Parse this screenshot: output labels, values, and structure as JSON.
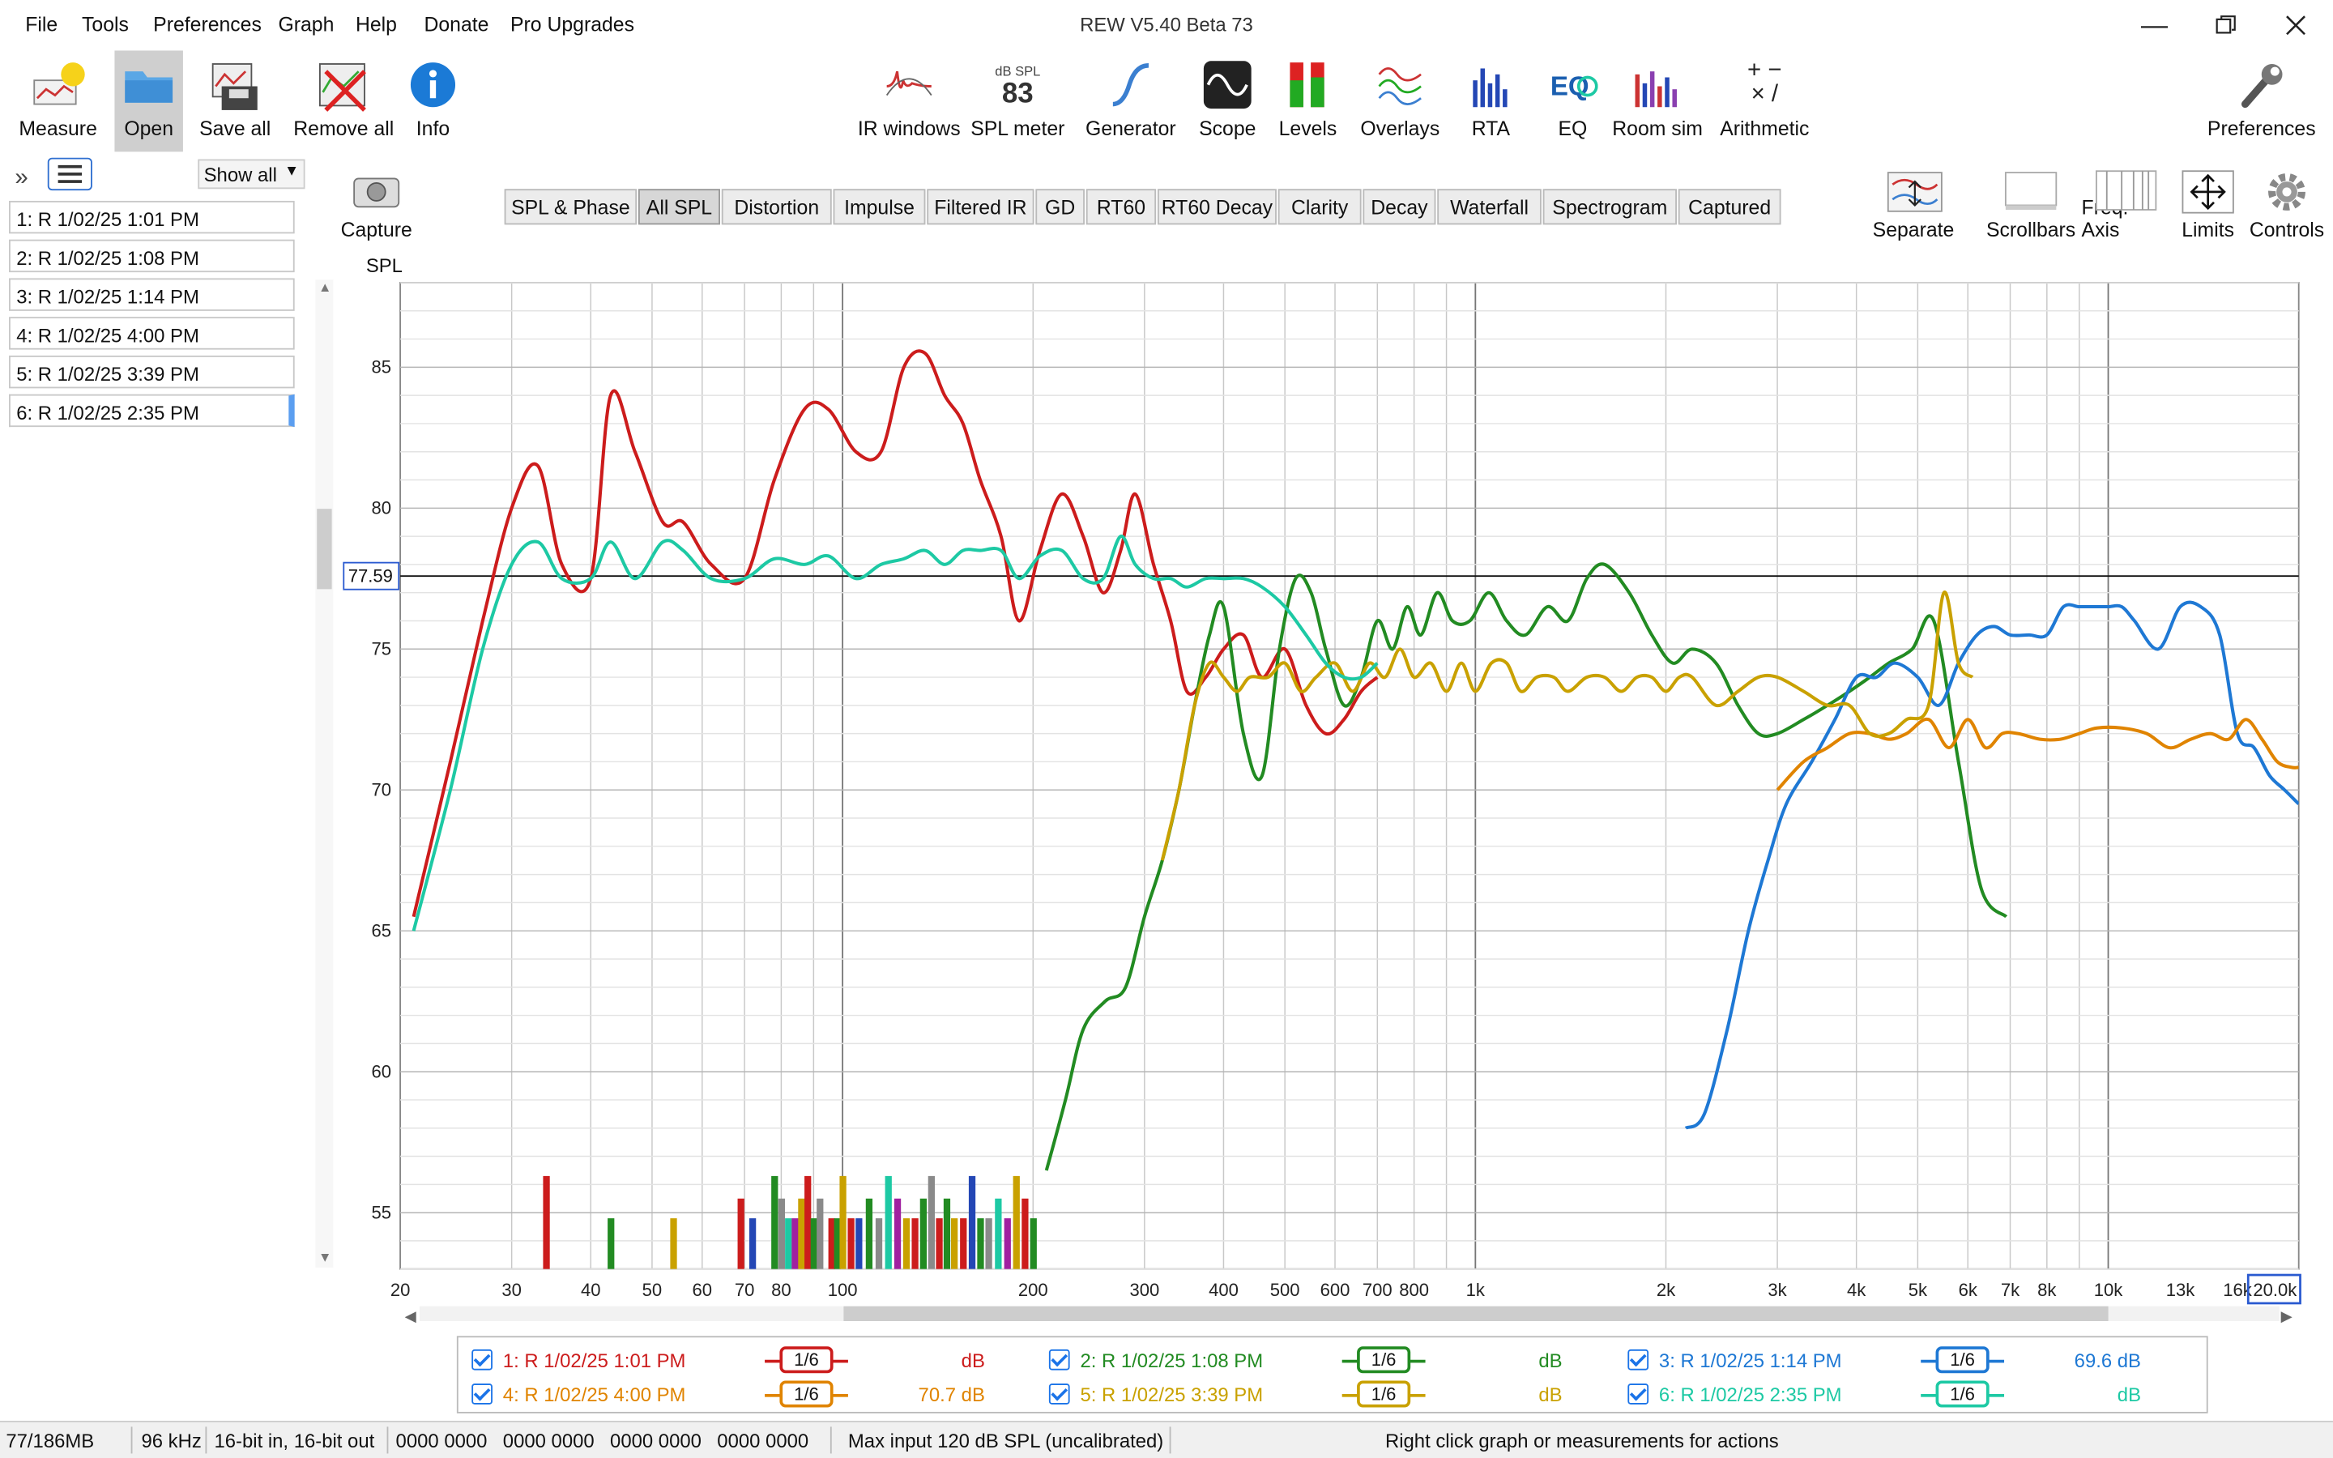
{
  "window": {
    "title": "REW V5.40 Beta 73"
  },
  "menu": [
    "File",
    "Tools",
    "Preferences",
    "Graph",
    "Help",
    "Donate",
    "Pro Upgrades"
  ],
  "toolbar_left": [
    {
      "label": "Measure",
      "icon": "measure-icon"
    },
    {
      "label": "Open",
      "icon": "folder-icon"
    },
    {
      "label": "Save all",
      "icon": "save-icon"
    },
    {
      "label": "Remove all",
      "icon": "remove-icon"
    },
    {
      "label": "Info",
      "icon": "info-icon"
    }
  ],
  "toolbar_center": [
    {
      "label": "IR windows"
    },
    {
      "label": "SPL meter",
      "value": "83",
      "unit": "dB SPL"
    },
    {
      "label": "Generator"
    },
    {
      "label": "Scope"
    },
    {
      "label": "Levels"
    },
    {
      "label": "Overlays"
    },
    {
      "label": "RTA"
    },
    {
      "label": "EQ"
    },
    {
      "label": "Room sim"
    },
    {
      "label": "Arithmetic"
    }
  ],
  "toolbar_right": {
    "label": "Preferences"
  },
  "sidebar": {
    "show_all": "Show all",
    "measurements": [
      "1: R 1/02/25 1:01 PM",
      "2: R 1/02/25 1:08 PM",
      "3: R 1/02/25 1:14 PM",
      "4: R 1/02/25 4:00 PM",
      "5: R 1/02/25 3:39 PM",
      "6: R 1/02/25 2:35 PM"
    ],
    "selected_index": 5
  },
  "capture": {
    "label": "Capture"
  },
  "tabs": [
    "SPL & Phase",
    "All SPL",
    "Distortion",
    "Impulse",
    "Filtered IR",
    "GD",
    "RT60",
    "RT60 Decay",
    "Clarity",
    "Decay",
    "Waterfall",
    "Spectrogram",
    "Captured"
  ],
  "active_tab": "All SPL",
  "graph_tools": [
    "Separate",
    "Scrollbars",
    "Freq. Axis",
    "Limits",
    "Controls"
  ],
  "chart_data": {
    "type": "line",
    "ylabel": "SPL",
    "cursor_level": "77.59",
    "x_scale": "log",
    "xlim": [
      20,
      20000
    ],
    "ylim": [
      53,
      88
    ],
    "x_ticks": [
      "20",
      "30",
      "40",
      "50",
      "60",
      "70",
      "80",
      "100",
      "200",
      "300",
      "400",
      "500",
      "600",
      "700",
      "800",
      "1k",
      "2k",
      "3k",
      "4k",
      "5k",
      "6k",
      "7k",
      "8k",
      "10k",
      "13k",
      "16k",
      "20.0k"
    ],
    "y_ticks": [
      "85",
      "80",
      "75",
      "70",
      "65",
      "60",
      "55"
    ],
    "grid": true,
    "series": [
      {
        "name": "1: R 1/02/25 1:01 PM",
        "color": "#cc1c1c",
        "x": [
          21,
          24,
          27,
          30,
          33,
          36,
          40,
          43,
          47,
          52,
          56,
          62,
          70,
          78,
          87,
          95,
          105,
          115,
          125,
          135,
          145,
          155,
          165,
          178,
          190,
          205,
          222,
          240,
          258,
          275,
          290,
          310,
          330,
          350,
          375,
          400,
          430,
          460,
          500,
          540,
          580,
          620,
          660,
          700
        ],
        "y": [
          65.5,
          71,
          76,
          80,
          81.5,
          78,
          77.5,
          84,
          82,
          79.5,
          79.5,
          78,
          77.5,
          81,
          83.5,
          83.5,
          82,
          82,
          85,
          85.5,
          84,
          83,
          81,
          79,
          76,
          78.5,
          80.5,
          79,
          77,
          78.5,
          80.5,
          78,
          76,
          73.5,
          74,
          75,
          75.5,
          74,
          75,
          73,
          72,
          72.5,
          73.5,
          74
        ]
      },
      {
        "name": "2: R 1/02/25 1:08 PM",
        "color": "#228b22",
        "x": [
          210,
          225,
          240,
          260,
          280,
          300,
          320,
          340,
          360,
          380,
          400,
          430,
          460,
          490,
          520,
          550,
          580,
          620,
          660,
          700,
          740,
          780,
          820,
          870,
          920,
          980,
          1050,
          1120,
          1200,
          1300,
          1400,
          1500,
          1600,
          1750,
          1900,
          2050,
          2200,
          2400,
          2600,
          2800,
          3000,
          3300,
          3600,
          3900,
          4200,
          4500,
          4900,
          5300,
          5800,
          6300,
          6900
        ],
        "y": [
          56.5,
          59,
          61.5,
          62.5,
          63,
          65.5,
          67.5,
          70,
          73,
          75.5,
          76.5,
          72,
          70.5,
          75,
          77.5,
          77,
          75,
          73,
          74,
          76,
          75,
          76.5,
          75.5,
          77,
          76,
          76,
          77,
          76,
          75.5,
          76.5,
          76,
          77.5,
          78,
          77,
          75.5,
          74.5,
          75,
          74.5,
          73,
          72,
          72,
          72.5,
          73,
          73.5,
          74,
          74.5,
          75,
          76,
          71,
          66.5,
          65.5
        ]
      },
      {
        "name": "3: R 1/02/25 1:14 PM",
        "color": "#1e78d4",
        "x": [
          2150,
          2300,
          2500,
          2700,
          2900,
          3100,
          3400,
          3700,
          4000,
          4300,
          4600,
          5000,
          5400,
          5800,
          6200,
          6600,
          7000,
          7500,
          8000,
          8500,
          9000,
          9500,
          10000,
          10500,
          11000,
          12000,
          13000,
          14000,
          15000,
          16000,
          17000,
          18000,
          19000,
          20000
        ],
        "y": [
          58,
          58.5,
          61.5,
          65,
          67.5,
          69.5,
          71,
          72.5,
          74,
          74,
          74.5,
          74,
          73,
          74.5,
          75.5,
          75.8,
          75.5,
          75.5,
          75.5,
          76.5,
          76.5,
          76.5,
          76.5,
          76.5,
          76,
          75,
          76.5,
          76.5,
          75.5,
          72,
          71.5,
          70.5,
          70,
          69.5
        ]
      },
      {
        "name": "4: R 1/02/25 4:00 PM",
        "color": "#e08400",
        "x": [
          3000,
          3300,
          3600,
          3900,
          4200,
          4500,
          4800,
          5200,
          5600,
          6000,
          6400,
          6800,
          7200,
          7800,
          8400,
          9000,
          9600,
          10500,
          11500,
          12500,
          13500,
          14500,
          15500,
          16500,
          17500,
          18500,
          19500,
          20000
        ],
        "y": [
          70,
          71,
          71.5,
          72,
          72,
          71.8,
          72,
          72.5,
          71.5,
          72.5,
          71.5,
          72,
          72,
          71.8,
          71.8,
          72,
          72.2,
          72.2,
          72,
          71.5,
          71.8,
          72,
          71.8,
          72.5,
          71.8,
          71,
          70.8,
          70.8
        ]
      },
      {
        "name": "5: R 1/02/25 3:39 PM",
        "color": "#c9a100",
        "x": [
          320,
          340,
          360,
          380,
          400,
          420,
          440,
          470,
          500,
          530,
          560,
          600,
          640,
          680,
          720,
          760,
          800,
          850,
          900,
          950,
          1000,
          1060,
          1120,
          1180,
          1250,
          1330,
          1400,
          1500,
          1600,
          1700,
          1800,
          1900,
          2000,
          2100,
          2200,
          2400,
          2600,
          2800,
          3000,
          3300,
          3600,
          3900,
          4200,
          4500,
          4800,
          5200,
          5500,
          5800,
          6100
        ],
        "y": [
          67.5,
          70,
          73,
          74.5,
          74,
          73.5,
          74,
          74,
          74.5,
          73.5,
          74,
          74.5,
          73.5,
          74.5,
          74,
          75,
          74,
          74.5,
          73.5,
          74.5,
          73.5,
          74.5,
          74.5,
          73.5,
          74,
          74,
          73.5,
          74,
          74,
          73.5,
          74,
          74,
          73.5,
          74,
          74,
          73,
          73.5,
          74,
          74,
          73.5,
          73,
          73,
          72,
          72,
          72.5,
          73,
          77,
          74.5,
          74
        ]
      },
      {
        "name": "6: R 1/02/25 2:35 PM",
        "color": "#1dc9a4",
        "x": [
          21,
          24,
          27,
          30,
          33,
          36,
          40,
          43,
          47,
          52,
          56,
          62,
          70,
          78,
          87,
          95,
          105,
          115,
          125,
          135,
          145,
          155,
          165,
          178,
          190,
          205,
          222,
          240,
          258,
          275,
          290,
          310,
          330,
          350,
          375,
          400,
          430,
          460,
          500,
          540,
          580,
          620,
          660,
          700
        ],
        "y": [
          65,
          70,
          75,
          78,
          78.8,
          77.5,
          77.5,
          78.8,
          77.5,
          78.8,
          78.5,
          77.5,
          77.5,
          78.2,
          78,
          78.3,
          77.5,
          78,
          78.2,
          78.5,
          78,
          78.5,
          78.5,
          78.5,
          77.5,
          78.3,
          78.5,
          77.5,
          77.5,
          79,
          78,
          77.5,
          77.5,
          77.2,
          77.5,
          77.5,
          77.5,
          77.2,
          76.5,
          75.5,
          74.5,
          74,
          74,
          74.5
        ]
      }
    ]
  },
  "legend": [
    {
      "name": "1: R 1/02/25 1:01 PM",
      "smoothing": "1/6",
      "level": "dB",
      "color": "#cc1c1c"
    },
    {
      "name": "2: R 1/02/25 1:08 PM",
      "smoothing": "1/6",
      "level": "dB",
      "color": "#228b22"
    },
    {
      "name": "3: R 1/02/25 1:14 PM",
      "smoothing": "1/6",
      "level": "69.6 dB",
      "color": "#1e78d4"
    },
    {
      "name": "4: R 1/02/25 4:00 PM",
      "smoothing": "1/6",
      "level": "70.7 dB",
      "color": "#e08400"
    },
    {
      "name": "5: R 1/02/25 3:39 PM",
      "smoothing": "1/6",
      "level": "dB",
      "color": "#c9a100"
    },
    {
      "name": "6: R 1/02/25 2:35 PM",
      "smoothing": "1/6",
      "level": "dB",
      "color": "#1dc9a4"
    }
  ],
  "status": {
    "memory": "77/186MB",
    "rate": "96 kHz",
    "bits": "16-bit in, 16-bit out",
    "levels": [
      "0000 0000",
      "0000 0000",
      "0000 0000",
      "0000 0000"
    ],
    "max_input": "Max input 120 dB SPL (uncalibrated)",
    "hint": "Right click graph or measurements for actions"
  }
}
